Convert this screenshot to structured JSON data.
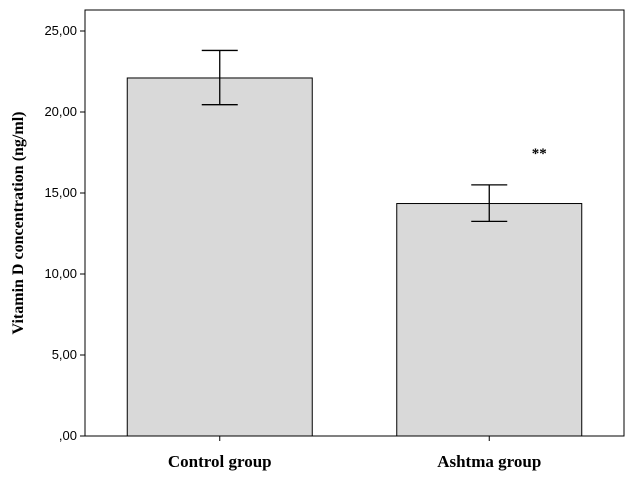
{
  "chart_data": {
    "type": "bar",
    "categories": [
      "Control group",
      "Ashtma group"
    ],
    "values": [
      22.1,
      14.35
    ],
    "error_bars": [
      {
        "low": 20.45,
        "high": 23.8
      },
      {
        "low": 13.25,
        "high": 15.5
      }
    ],
    "ylabel": "Vitamin D concentration (ng/ml)",
    "xlabel": "",
    "ylim": [
      0,
      25
    ],
    "yticks": [
      0,
      5,
      10,
      15,
      20,
      25
    ],
    "ytick_labels": [
      ",00",
      "5,00",
      "10,00",
      "15,00",
      "20,00",
      "25,00"
    ],
    "annotations": [
      {
        "text": "**",
        "category": "Ashtma group"
      }
    ],
    "bar_color": "#d9d9d9",
    "grid": false
  }
}
